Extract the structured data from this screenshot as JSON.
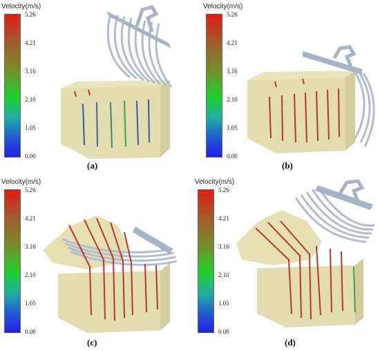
{
  "legend": {
    "title": "Velocity(m/s)",
    "ticks": [
      "5.26",
      "4.21",
      "3.16",
      "2.10",
      "1.05",
      "0.00"
    ]
  },
  "panels": [
    {
      "id": "a",
      "caption": "(a)"
    },
    {
      "id": "b",
      "caption": "(b)"
    },
    {
      "id": "c",
      "caption": "(c)"
    },
    {
      "id": "d",
      "caption": "(d)"
    }
  ],
  "colors": {
    "soil": "#d8d19a",
    "rake": "#b9c6d6",
    "root_red": "#b8352a",
    "root_blue": "#315b9a",
    "root_green": "#3aa04a"
  }
}
